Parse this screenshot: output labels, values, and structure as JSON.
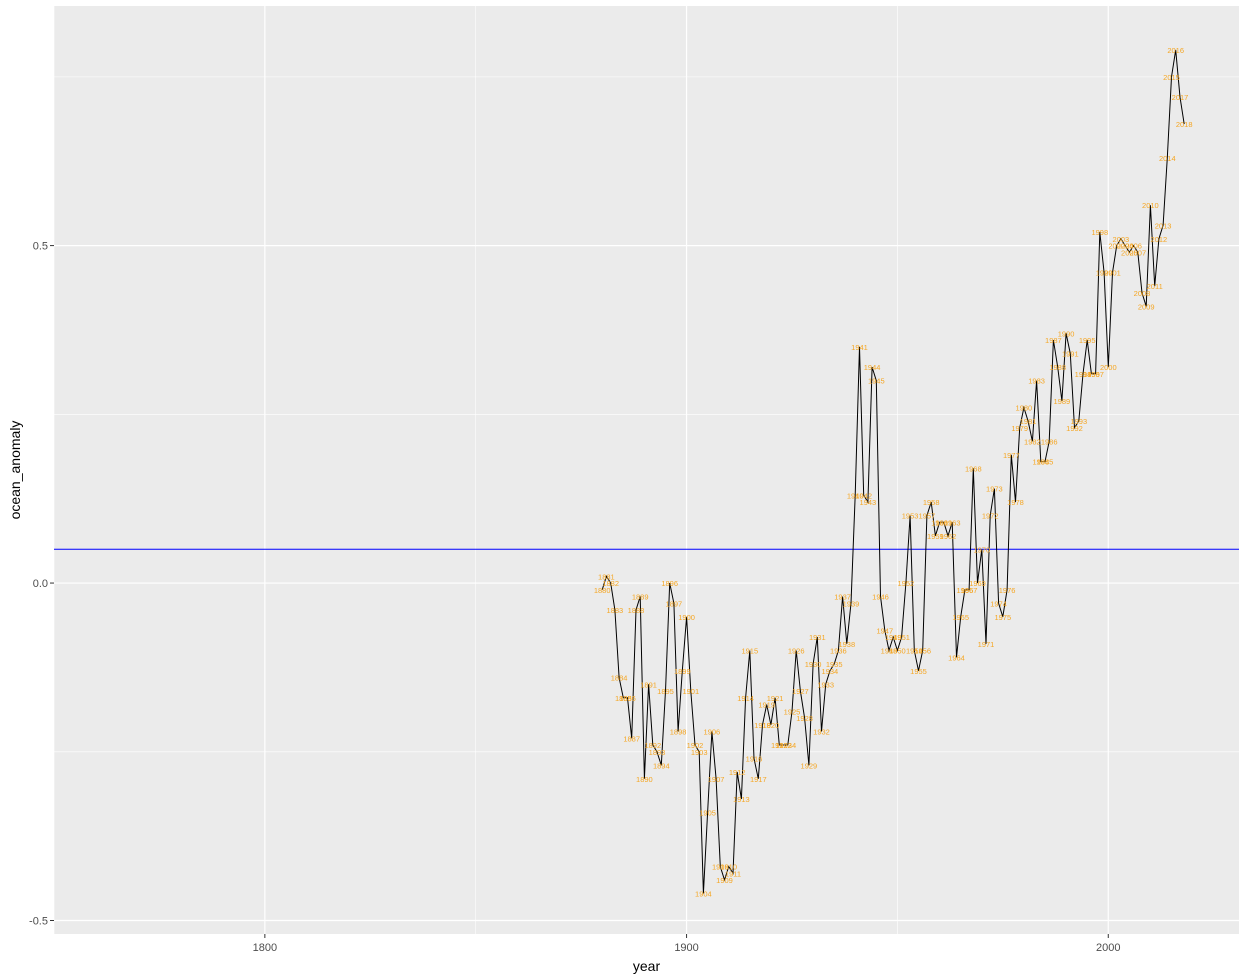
{
  "chart_data": {
    "type": "line",
    "title": "",
    "xlabel": "year",
    "ylabel": "ocean_anomaly",
    "xlim": [
      1750,
      2031
    ],
    "ylim": [
      -0.52,
      0.855
    ],
    "x_ticks": [
      1800,
      1900,
      2000
    ],
    "x_tick_labels": [
      "1800",
      "1900",
      "2000"
    ],
    "y_ticks": [
      -0.5,
      0.0,
      0.5
    ],
    "y_tick_labels": [
      "-0.5",
      "0.0",
      "0.5"
    ],
    "reference_line": {
      "y": 0.05,
      "color": "#0000ff"
    },
    "line_color": "#000000",
    "label_color": "#f5a623",
    "panel_color": "#ebebeb",
    "grid_color": "#ffffff",
    "series": [
      {
        "name": "ocean_anomaly",
        "x": [
          1880,
          1881,
          1882,
          1883,
          1884,
          1885,
          1886,
          1887,
          1888,
          1889,
          1890,
          1891,
          1892,
          1893,
          1894,
          1895,
          1896,
          1897,
          1898,
          1899,
          1900,
          1901,
          1902,
          1903,
          1904,
          1905,
          1906,
          1907,
          1908,
          1909,
          1910,
          1911,
          1912,
          1913,
          1914,
          1915,
          1916,
          1917,
          1918,
          1919,
          1920,
          1921,
          1922,
          1923,
          1924,
          1925,
          1926,
          1927,
          1928,
          1929,
          1930,
          1931,
          1932,
          1933,
          1934,
          1935,
          1936,
          1937,
          1938,
          1939,
          1940,
          1941,
          1942,
          1943,
          1944,
          1945,
          1946,
          1947,
          1948,
          1949,
          1950,
          1951,
          1952,
          1953,
          1954,
          1955,
          1956,
          1957,
          1958,
          1959,
          1960,
          1961,
          1962,
          1963,
          1964,
          1965,
          1966,
          1967,
          1968,
          1969,
          1970,
          1971,
          1972,
          1973,
          1974,
          1975,
          1976,
          1977,
          1978,
          1979,
          1980,
          1981,
          1982,
          1983,
          1984,
          1985,
          1986,
          1987,
          1988,
          1989,
          1990,
          1991,
          1992,
          1993,
          1994,
          1995,
          1996,
          1997,
          1998,
          1999,
          2000,
          2001,
          2002,
          2003,
          2004,
          2005,
          2006,
          2007,
          2008,
          2009,
          2010,
          2011,
          2012,
          2013,
          2014,
          2015,
          2016,
          2017,
          2018
        ],
        "y": [
          -0.01,
          0.01,
          0.0,
          -0.04,
          -0.14,
          -0.17,
          -0.17,
          -0.23,
          -0.04,
          -0.02,
          -0.29,
          -0.15,
          -0.24,
          -0.25,
          -0.27,
          -0.16,
          0.0,
          -0.03,
          -0.22,
          -0.13,
          -0.05,
          -0.16,
          -0.24,
          -0.25,
          -0.46,
          -0.34,
          -0.22,
          -0.29,
          -0.42,
          -0.44,
          -0.42,
          -0.43,
          -0.28,
          -0.32,
          -0.17,
          -0.1,
          -0.26,
          -0.29,
          -0.21,
          -0.18,
          -0.21,
          -0.17,
          -0.24,
          -0.24,
          -0.24,
          -0.19,
          -0.1,
          -0.16,
          -0.2,
          -0.27,
          -0.12,
          -0.08,
          -0.22,
          -0.15,
          -0.13,
          -0.12,
          -0.1,
          -0.02,
          -0.09,
          -0.03,
          0.13,
          0.35,
          0.13,
          0.12,
          0.32,
          0.3,
          -0.02,
          -0.07,
          -0.1,
          -0.08,
          -0.1,
          -0.08,
          0.0,
          0.1,
          -0.1,
          -0.13,
          -0.1,
          0.1,
          0.12,
          0.07,
          0.09,
          0.09,
          0.07,
          0.09,
          -0.11,
          -0.05,
          -0.01,
          -0.01,
          0.17,
          0.0,
          0.05,
          -0.09,
          0.1,
          0.14,
          -0.03,
          -0.05,
          -0.01,
          0.19,
          0.12,
          0.23,
          0.26,
          0.24,
          0.21,
          0.3,
          0.18,
          0.18,
          0.21,
          0.36,
          0.32,
          0.27,
          0.37,
          0.34,
          0.23,
          0.24,
          0.31,
          0.36,
          0.31,
          0.31,
          0.52,
          0.46,
          0.32,
          0.46,
          0.5,
          0.51,
          0.5,
          0.49,
          0.5,
          0.49,
          0.43,
          0.41,
          0.56,
          0.44,
          0.51,
          0.53,
          0.63,
          0.75,
          0.79,
          0.72,
          0.68
        ]
      }
    ]
  }
}
